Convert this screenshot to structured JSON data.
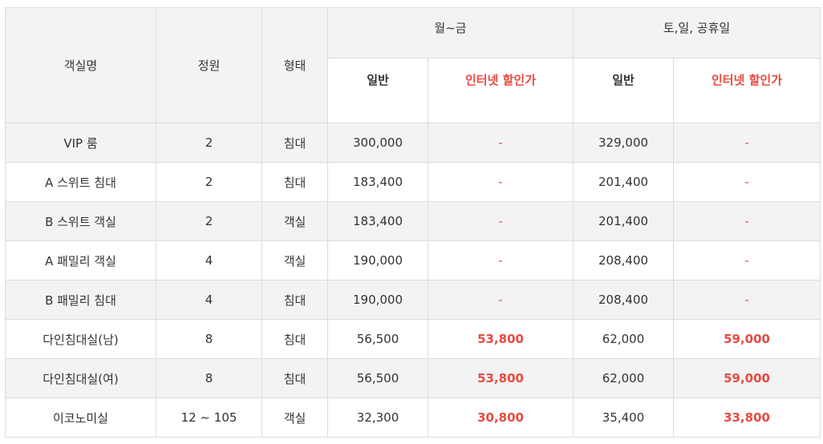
{
  "headers": {
    "room_name": "객실명",
    "capacity": "정원",
    "type": "형태",
    "weekday": "월~금",
    "weekend": "토,일, 공휴일",
    "regular": "일반",
    "internet": "인터넷 할인가"
  },
  "rows": [
    {
      "name": "VIP 룸",
      "capacity": "2",
      "type": "침대",
      "wd_regular": "300,000",
      "wd_internet": "-",
      "we_regular": "329,000",
      "we_internet": "-"
    },
    {
      "name": "A 스위트 침대",
      "capacity": "2",
      "type": "침대",
      "wd_regular": "183,400",
      "wd_internet": "-",
      "we_regular": "201,400",
      "we_internet": "-"
    },
    {
      "name": "B 스위트 객실",
      "capacity": "2",
      "type": "객실",
      "wd_regular": "183,400",
      "wd_internet": "-",
      "we_regular": "201,400",
      "we_internet": "-"
    },
    {
      "name": "A 패밀리 객실",
      "capacity": "4",
      "type": "객실",
      "wd_regular": "190,000",
      "wd_internet": "-",
      "we_regular": "208,400",
      "we_internet": "-"
    },
    {
      "name": "B 패밀리 침대",
      "capacity": "4",
      "type": "침대",
      "wd_regular": "190,000",
      "wd_internet": "-",
      "we_regular": "208,400",
      "we_internet": "-"
    },
    {
      "name": "다인침대실(남)",
      "capacity": "8",
      "type": "침대",
      "wd_regular": "56,500",
      "wd_internet": "53,800",
      "we_regular": "62,000",
      "we_internet": "59,000"
    },
    {
      "name": "다인침대실(여)",
      "capacity": "8",
      "type": "침대",
      "wd_regular": "56,500",
      "wd_internet": "53,800",
      "we_regular": "62,000",
      "we_internet": "59,000"
    },
    {
      "name": "이코노미실",
      "capacity": "12 ~ 105",
      "type": "객실",
      "wd_regular": "32,300",
      "wd_internet": "30,800",
      "we_regular": "35,400",
      "we_internet": "33,800"
    }
  ],
  "colors": {
    "accent_red": "#e84a3f",
    "header_bg": "#f3f3f3",
    "border": "#dcdcdc"
  }
}
